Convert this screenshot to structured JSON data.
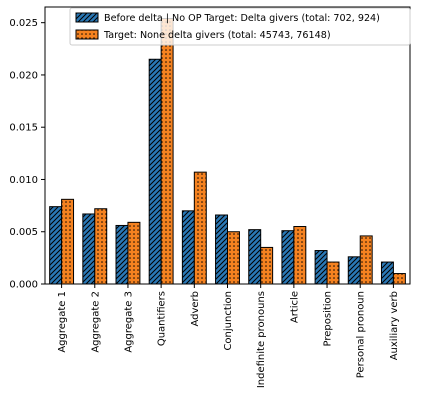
{
  "colors": {
    "series1": "#2a78b5",
    "series2": "#f58220",
    "axis": "#000000"
  },
  "chart_data": {
    "type": "bar",
    "title": "",
    "xlabel": "",
    "ylabel": "",
    "ylim": [
      0,
      0.0265
    ],
    "yticks": [
      0.0,
      0.005,
      0.01,
      0.015,
      0.02,
      0.025
    ],
    "ytick_labels": [
      "0.000",
      "0.005",
      "0.010",
      "0.015",
      "0.020",
      "0.025"
    ],
    "grid": false,
    "legend_position": "top-right",
    "categories": [
      "Aggregate 1",
      "Aggregate 2",
      "Aggregate 3",
      "Quantifiers",
      "Adverb",
      "Conjunction",
      "Indefinite pronouns",
      "Article",
      "Preposition",
      "Personal pronoun",
      "Auxiliary verb"
    ],
    "series": [
      {
        "name": "Before delta | No OP Target: Delta givers (total: 702, 924)",
        "hatch": "diagonal",
        "values": [
          0.0074,
          0.0067,
          0.0056,
          0.0215,
          0.007,
          0.0066,
          0.0052,
          0.0051,
          0.0032,
          0.0026,
          0.0021
        ]
      },
      {
        "name": "Target: None delta givers (total: 45743, 76148)",
        "hatch": "dots",
        "values": [
          0.0081,
          0.0072,
          0.0059,
          0.0254,
          0.0107,
          0.005,
          0.0035,
          0.0055,
          0.0021,
          0.0046,
          0.001
        ]
      }
    ]
  }
}
